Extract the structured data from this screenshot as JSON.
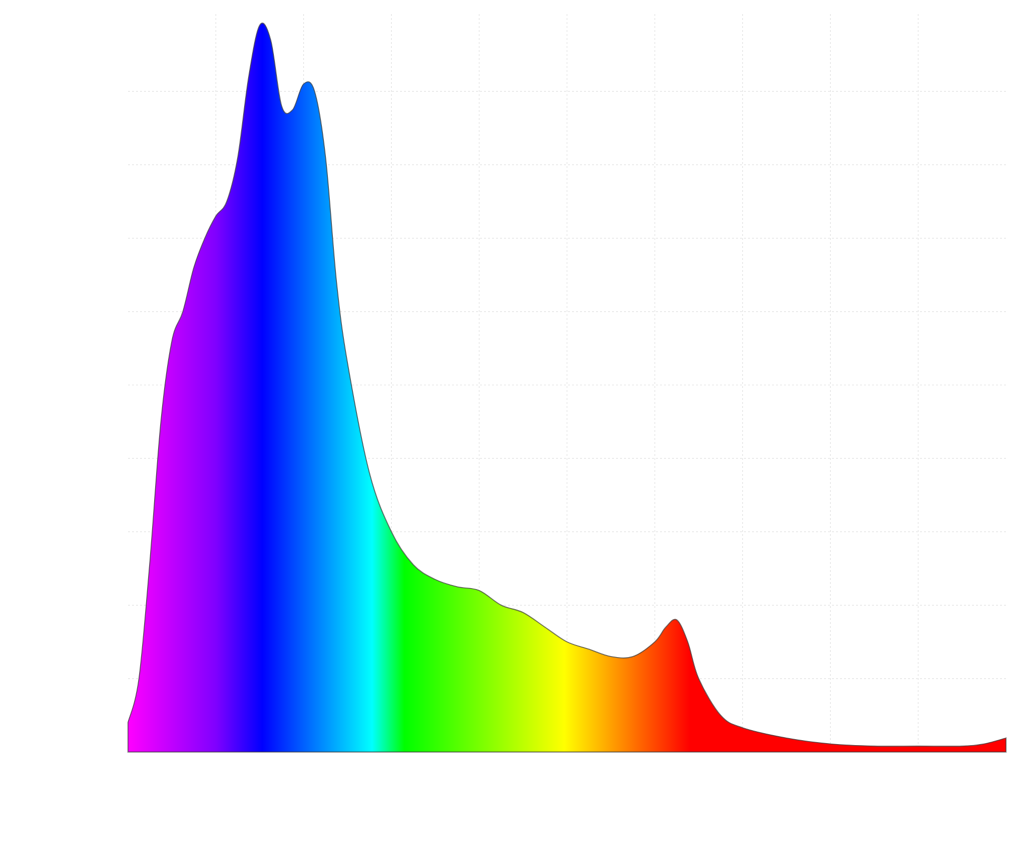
{
  "chart_data": {
    "type": "area",
    "x": [
      380,
      385,
      390,
      395,
      400,
      405,
      410,
      415,
      420,
      425,
      430,
      435,
      440,
      445,
      450,
      455,
      460,
      465,
      470,
      475,
      480,
      490,
      500,
      510,
      520,
      530,
      540,
      550,
      560,
      570,
      580,
      590,
      600,
      610,
      620,
      625,
      630,
      635,
      640,
      650,
      660,
      680,
      700,
      720,
      740,
      760,
      770,
      780
    ],
    "values": [
      0.04,
      0.1,
      0.26,
      0.45,
      0.56,
      0.6,
      0.66,
      0.7,
      0.73,
      0.75,
      0.81,
      0.92,
      0.99,
      0.97,
      0.88,
      0.875,
      0.91,
      0.9,
      0.81,
      0.64,
      0.53,
      0.38,
      0.3,
      0.255,
      0.235,
      0.225,
      0.22,
      0.2,
      0.19,
      0.17,
      0.15,
      0.14,
      0.13,
      0.13,
      0.15,
      0.17,
      0.18,
      0.15,
      0.1,
      0.05,
      0.033,
      0.019,
      0.011,
      0.008,
      0.008,
      0.008,
      0.011,
      0.019
    ],
    "colors": [
      "#ff00ff",
      "#8000ff",
      "#0000ff",
      "#00ffff",
      "#00ff00",
      "#ffff00",
      "#ff0000",
      "#ff0000"
    ],
    "xlim": [
      380,
      780
    ],
    "ylim": [
      0,
      1
    ],
    "xticks": [
      420,
      460,
      500,
      540,
      580,
      620,
      660,
      700,
      740
    ],
    "yticks": [
      0.1,
      0.2,
      0.3,
      0.4,
      0.5,
      0.6,
      0.7,
      0.8,
      0.9
    ],
    "grid": true
  }
}
